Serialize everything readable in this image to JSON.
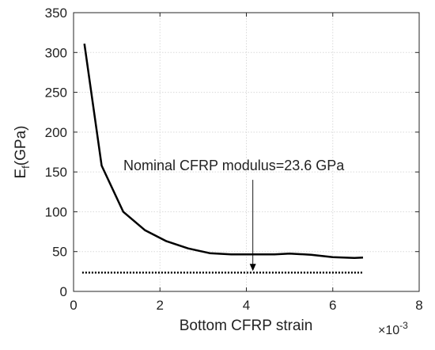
{
  "chart_data": {
    "type": "line",
    "xlabel": "Bottom CFRP strain",
    "ylabel_main": "E",
    "ylabel_sub": "f",
    "ylabel_unit": "(GPa)",
    "x_multiplier": "×10",
    "x_multiplier_exp": "-3",
    "xlim": [
      0,
      8
    ],
    "ylim": [
      0,
      350
    ],
    "xticks": [
      0,
      2,
      4,
      6,
      8
    ],
    "yticks": [
      0,
      50,
      100,
      150,
      200,
      250,
      300,
      350
    ],
    "grid": true,
    "series": [
      {
        "style": "solid",
        "color": "#000000",
        "x": [
          0.25,
          0.65,
          1.15,
          1.65,
          2.15,
          2.65,
          3.15,
          3.65,
          4.15,
          4.65,
          5.0,
          5.5,
          6.0,
          6.5,
          6.7
        ],
        "y": [
          311,
          158,
          100,
          77,
          63,
          54,
          48,
          46.5,
          46.5,
          46.5,
          47.5,
          46,
          43,
          42,
          42.5
        ]
      },
      {
        "style": "dotted",
        "color": "#000000",
        "x": [
          0.2,
          6.7
        ],
        "y": [
          23.6,
          23.6
        ]
      }
    ],
    "annotation": {
      "text": "Nominal CFRP modulus=23.6 GPa",
      "arrow_from": [
        4.15,
        160
      ],
      "arrow_to": [
        4.15,
        23.6
      ]
    }
  }
}
